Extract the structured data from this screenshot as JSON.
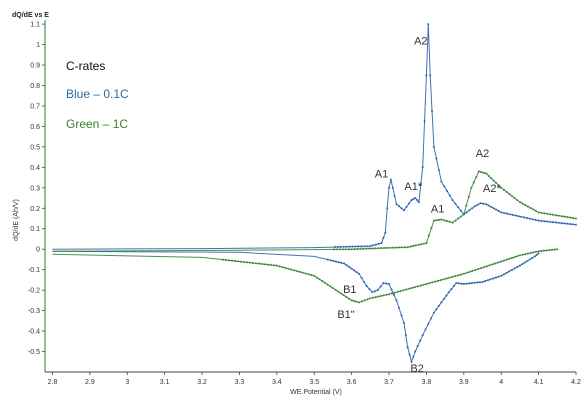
{
  "chart_data": {
    "type": "scatter",
    "title": "dQ/dE vs E",
    "xlabel": "WE.Potential (V)",
    "ylabel": "dQ/dE (Ah/V)",
    "xlim": [
      2.78,
      4.2
    ],
    "ylim": [
      -0.6,
      1.12
    ],
    "x_ticks": [
      "2.8",
      "2.9",
      "3",
      "3.1",
      "3.2",
      "3.3",
      "3.4",
      "3.5",
      "3.6",
      "3.7",
      "3.8",
      "3.9",
      "4",
      "4.1",
      "4.2"
    ],
    "y_ticks": [
      "1.1",
      "1",
      "0.9",
      "0.8",
      "0.7",
      "0.6",
      "0.5",
      "0.4",
      "0.3",
      "0.2",
      "0.1",
      "0",
      "-0.1",
      "-0.2",
      "-0.3",
      "-0.4",
      "-0.5"
    ],
    "grid": false,
    "legend": {
      "title": "C-rates",
      "position": "top-left",
      "entries": [
        {
          "label": "Blue – 0.1C",
          "color": "#2f6aa8"
        },
        {
          "label": "Green – 1C",
          "color": "#3b7f2c"
        }
      ]
    },
    "series": [
      {
        "color": "#1f5aa6",
        "charge": [
          [
            2.8,
            0.0
          ],
          [
            3.2,
            0.003
          ],
          [
            3.5,
            0.008
          ],
          [
            3.65,
            0.015
          ],
          [
            3.68,
            0.03
          ],
          [
            3.69,
            0.08
          ],
          [
            3.695,
            0.2
          ],
          [
            3.7,
            0.3
          ],
          [
            3.705,
            0.34
          ],
          [
            3.71,
            0.3
          ],
          [
            3.72,
            0.22
          ],
          [
            3.74,
            0.19
          ],
          [
            3.76,
            0.24
          ],
          [
            3.77,
            0.25
          ],
          [
            3.78,
            0.23
          ],
          [
            3.79,
            0.4
          ],
          [
            3.8,
            0.85
          ],
          [
            3.805,
            1.1
          ],
          [
            3.81,
            0.85
          ],
          [
            3.82,
            0.5
          ],
          [
            3.84,
            0.33
          ],
          [
            3.87,
            0.24
          ],
          [
            3.9,
            0.17
          ],
          [
            3.93,
            0.21
          ],
          [
            3.945,
            0.225
          ],
          [
            3.96,
            0.22
          ],
          [
            4.0,
            0.18
          ],
          [
            4.1,
            0.14
          ],
          [
            4.2,
            0.12
          ]
        ],
        "discharge": [
          [
            2.8,
            -0.01
          ],
          [
            3.3,
            -0.015
          ],
          [
            3.5,
            -0.035
          ],
          [
            3.58,
            -0.07
          ],
          [
            3.62,
            -0.12
          ],
          [
            3.64,
            -0.18
          ],
          [
            3.655,
            -0.21
          ],
          [
            3.67,
            -0.2
          ],
          [
            3.685,
            -0.165
          ],
          [
            3.7,
            -0.17
          ],
          [
            3.72,
            -0.25
          ],
          [
            3.74,
            -0.36
          ],
          [
            3.75,
            -0.48
          ],
          [
            3.76,
            -0.55
          ],
          [
            3.77,
            -0.5
          ],
          [
            3.79,
            -0.42
          ],
          [
            3.82,
            -0.31
          ],
          [
            3.86,
            -0.21
          ],
          [
            3.88,
            -0.165
          ],
          [
            3.9,
            -0.17
          ],
          [
            3.95,
            -0.16
          ],
          [
            4.0,
            -0.13
          ],
          [
            4.05,
            -0.08
          ],
          [
            4.09,
            -0.035
          ],
          [
            4.1,
            -0.02
          ]
        ]
      },
      {
        "color": "#2e7d2e",
        "charge": [
          [
            2.8,
            -0.01
          ],
          [
            3.3,
            -0.005
          ],
          [
            3.6,
            0.0
          ],
          [
            3.75,
            0.01
          ],
          [
            3.8,
            0.03
          ],
          [
            3.82,
            0.14
          ],
          [
            3.84,
            0.145
          ],
          [
            3.87,
            0.13
          ],
          [
            3.9,
            0.17
          ],
          [
            3.92,
            0.3
          ],
          [
            3.94,
            0.38
          ],
          [
            3.96,
            0.37
          ],
          [
            4.0,
            0.3
          ],
          [
            4.05,
            0.23
          ],
          [
            4.1,
            0.18
          ],
          [
            4.2,
            0.15
          ]
        ],
        "discharge": [
          [
            2.8,
            -0.025
          ],
          [
            3.2,
            -0.04
          ],
          [
            3.4,
            -0.08
          ],
          [
            3.5,
            -0.13
          ],
          [
            3.55,
            -0.19
          ],
          [
            3.6,
            -0.25
          ],
          [
            3.62,
            -0.26
          ],
          [
            3.65,
            -0.24
          ],
          [
            3.7,
            -0.22
          ],
          [
            3.8,
            -0.17
          ],
          [
            3.9,
            -0.12
          ],
          [
            4.0,
            -0.06
          ],
          [
            4.05,
            -0.03
          ],
          [
            4.1,
            -0.01
          ],
          [
            4.15,
            0.0
          ]
        ]
      }
    ],
    "annotations": [
      {
        "text": "A2",
        "x": 3.785,
        "y": 1.0
      },
      {
        "text": "A1",
        "x": 3.68,
        "y": 0.35
      },
      {
        "text": "A1*",
        "x": 3.765,
        "y": 0.29
      },
      {
        "text": "A1",
        "x": 3.83,
        "y": 0.18
      },
      {
        "text": "A2",
        "x": 3.95,
        "y": 0.45
      },
      {
        "text": "A2*",
        "x": 3.975,
        "y": 0.28
      },
      {
        "text": "B1",
        "x": 3.595,
        "y": -0.215
      },
      {
        "text": "B1\"",
        "x": 3.585,
        "y": -0.335
      },
      {
        "text": "B2",
        "x": 3.775,
        "y": -0.6
      }
    ]
  }
}
